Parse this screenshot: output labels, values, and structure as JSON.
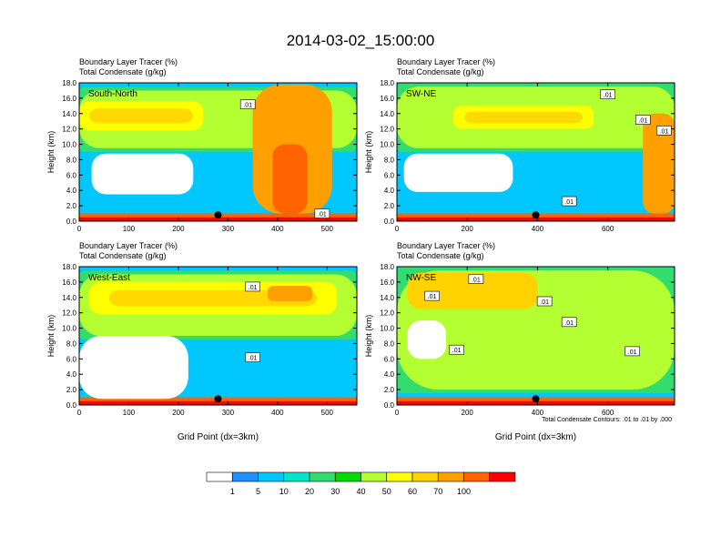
{
  "figure": {
    "title": "2014-03-02_15:00:00",
    "contour_note": "Total Condensate Contours: .01 to .01 by .000",
    "colorbar": {
      "labels": [
        "1",
        "5",
        "10",
        "20",
        "30",
        "40",
        "50",
        "60",
        "70",
        "100"
      ],
      "colors": [
        "#ffffff",
        "#1e90ff",
        "#00c8ff",
        "#00e6c8",
        "#32dc6e",
        "#00dc00",
        "#b4ff32",
        "#ffff00",
        "#ffd200",
        "#ffa000",
        "#ff6400",
        "#ff0000"
      ]
    }
  },
  "chart_data": [
    {
      "type": "heatmap",
      "panel": "South-North",
      "var1": "Boundary Layer Tracer",
      "unit1": "(%)",
      "var2": "Total Condensate",
      "unit2": "(g/kg)",
      "ylabel": "Height (km)",
      "xlabel": "",
      "xlim": [
        0,
        560
      ],
      "ylim": [
        0,
        18
      ],
      "xticks": [
        0,
        100,
        200,
        300,
        400,
        500
      ],
      "yticks": [
        "0.0",
        "2.0",
        "4.0",
        "6.0",
        "8.0",
        "10.0",
        "12.0",
        "14.0",
        "16.0",
        "18.0"
      ],
      "marker_x": 280,
      "contour_labels": [
        {
          "text": ".01",
          "x": 340,
          "y": 15.2
        },
        {
          "text": ".01",
          "x": 490,
          "y": 1.0
        }
      ],
      "features": [
        {
          "layer": "surface",
          "value": 100,
          "x0": 0,
          "x1": 560
        },
        {
          "layer": "anvil",
          "value": 30,
          "x0": 0,
          "x1": 560,
          "ybot": 9.5,
          "ytop": 17
        },
        {
          "layer": "anvil-core",
          "value": 45,
          "x0": 0,
          "x1": 250,
          "ybot": 11.8,
          "ytop": 15.6
        },
        {
          "layer": "updraft",
          "value": 65,
          "x0": 350,
          "x1": 510,
          "ybot": 1,
          "ytop": 17.8
        },
        {
          "layer": "updraft-core",
          "value": 75,
          "x0": 390,
          "x1": 460,
          "ybot": 1,
          "ytop": 10
        },
        {
          "layer": "clear",
          "value": 0,
          "x0": 25,
          "x1": 230,
          "ybot": 3.5,
          "ytop": 8.8
        }
      ]
    },
    {
      "type": "heatmap",
      "panel": "SW-NE",
      "var1": "Boundary Layer Tracer",
      "unit1": "(%)",
      "var2": "Total Condensate",
      "unit2": "(g/kg)",
      "ylabel": "Height (km)",
      "xlabel": "",
      "xlim": [
        0,
        790
      ],
      "ylim": [
        0,
        18
      ],
      "xticks": [
        0,
        200,
        400,
        600
      ],
      "yticks": [
        "0.0",
        "2.0",
        "4.0",
        "6.0",
        "8.0",
        "10.0",
        "12.0",
        "14.0",
        "16.0",
        "18.0"
      ],
      "marker_x": 395,
      "contour_labels": [
        {
          "text": ".01",
          "x": 600,
          "y": 16.5
        },
        {
          "text": ".01",
          "x": 700,
          "y": 13.2
        },
        {
          "text": ".01",
          "x": 760,
          "y": 11.8
        },
        {
          "text": ".01",
          "x": 490,
          "y": 2.6
        }
      ],
      "features": [
        {
          "layer": "surface",
          "value": 100,
          "x0": 0,
          "x1": 790
        },
        {
          "layer": "anvil",
          "value": 30,
          "x0": 0,
          "x1": 790,
          "ybot": 9.5,
          "ytop": 17.5
        },
        {
          "layer": "anvil-core",
          "value": 45,
          "x0": 160,
          "x1": 560,
          "ybot": 12,
          "ytop": 15
        },
        {
          "layer": "updraft",
          "value": 60,
          "x0": 700,
          "x1": 790,
          "ybot": 1,
          "ytop": 14
        },
        {
          "layer": "clear",
          "value": 0,
          "x0": 20,
          "x1": 330,
          "ybot": 3.8,
          "ytop": 8.8
        }
      ]
    },
    {
      "type": "heatmap",
      "panel": "West-East",
      "var1": "Boundary Layer Tracer",
      "unit1": "(%)",
      "var2": "Total Condensate",
      "unit2": "(g/kg)",
      "ylabel": "Height (km)",
      "xlabel": "Grid Point (dx=3km)",
      "xlim": [
        0,
        560
      ],
      "ylim": [
        0,
        18
      ],
      "xticks": [
        0,
        100,
        200,
        300,
        400,
        500
      ],
      "yticks": [
        "0.0",
        "2.0",
        "4.0",
        "6.0",
        "8.0",
        "10.0",
        "12.0",
        "14.0",
        "16.0",
        "18.0"
      ],
      "marker_x": 280,
      "contour_labels": [
        {
          "text": ".01",
          "x": 350,
          "y": 15.4
        },
        {
          "text": ".01",
          "x": 350,
          "y": 6.2
        }
      ],
      "features": [
        {
          "layer": "surface",
          "value": 100,
          "x0": 0,
          "x1": 560
        },
        {
          "layer": "anvil",
          "value": 30,
          "x0": 0,
          "x1": 560,
          "ybot": 9,
          "ytop": 17
        },
        {
          "layer": "anvil-core",
          "value": 45,
          "x0": 20,
          "x1": 520,
          "ybot": 11.8,
          "ytop": 16
        },
        {
          "layer": "anvil-peak",
          "value": 65,
          "x0": 380,
          "x1": 470,
          "ybot": 13.5,
          "ytop": 15.5
        },
        {
          "layer": "clear",
          "value": 0,
          "x0": 0,
          "x1": 220,
          "ybot": 0.8,
          "ytop": 9
        }
      ]
    },
    {
      "type": "heatmap",
      "panel": "NW-SE",
      "var1": "Boundary Layer Tracer",
      "unit1": "(%)",
      "var2": "Total Condensate",
      "unit2": "(g/kg)",
      "ylabel": "Height (km)",
      "xlabel": "Grid Point (dx=3km)",
      "xlim": [
        0,
        790
      ],
      "ylim": [
        0,
        18
      ],
      "xticks": [
        0,
        200,
        400,
        600
      ],
      "yticks": [
        "0.0",
        "2.0",
        "4.0",
        "6.0",
        "8.0",
        "10.0",
        "12.0",
        "14.0",
        "16.0",
        "18.0"
      ],
      "marker_x": 395,
      "contour_labels": [
        {
          "text": ".01",
          "x": 225,
          "y": 16.4
        },
        {
          "text": ".01",
          "x": 100,
          "y": 14.2
        },
        {
          "text": ".01",
          "x": 420,
          "y": 13.5
        },
        {
          "text": ".01",
          "x": 490,
          "y": 10.8
        },
        {
          "text": ".01",
          "x": 170,
          "y": 7.2
        },
        {
          "text": ".01",
          "x": 670,
          "y": 7.0
        }
      ],
      "features": [
        {
          "layer": "surface",
          "value": 100,
          "x0": 0,
          "x1": 790
        },
        {
          "layer": "anvil",
          "value": 30,
          "x0": 0,
          "x1": 790,
          "ybot": 2,
          "ytop": 17.5
        },
        {
          "layer": "anvil-core",
          "value": 50,
          "x0": 30,
          "x1": 400,
          "ybot": 12.5,
          "ytop": 17.2
        },
        {
          "layer": "clear",
          "value": 0,
          "x0": 30,
          "x1": 140,
          "ybot": 6,
          "ytop": 11
        }
      ]
    }
  ]
}
